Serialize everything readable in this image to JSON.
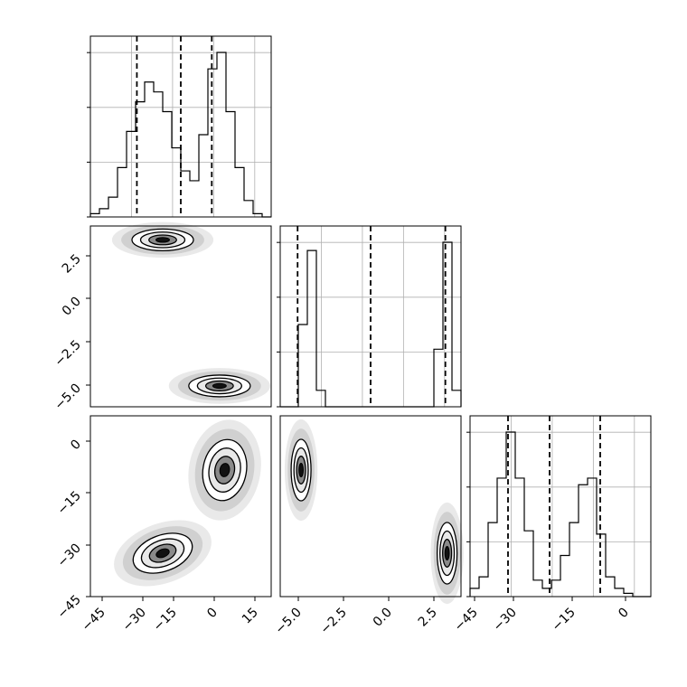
{
  "chart_data": [
    {
      "type": "histogram",
      "panel": "marginal-x",
      "x_range": [
        -50,
        20
      ],
      "bin_edges": [
        -50,
        -46.5,
        -43,
        -39.5,
        -36,
        -32.5,
        -29,
        -25.5,
        -22,
        -18.5,
        -15,
        -11.5,
        -8,
        -4.5,
        -1,
        2.5,
        6,
        9.5,
        13,
        16.5,
        20
      ],
      "counts": [
        0.02,
        0.05,
        0.12,
        0.3,
        0.52,
        0.7,
        0.82,
        0.76,
        0.64,
        0.42,
        0.28,
        0.22,
        0.5,
        0.9,
        1.0,
        0.64,
        0.3,
        0.1,
        0.02,
        0.0
      ],
      "quantiles": [
        -32,
        -15,
        -3
      ],
      "grid": true
    },
    {
      "type": "scatter-density",
      "panel": "y1-vs-x",
      "x_range": [
        -50,
        20
      ],
      "y_range": [
        -6.2,
        4.2
      ],
      "yticks": [
        "2.5",
        "0.0",
        "−2.5",
        "−5.0"
      ],
      "clusters": [
        {
          "x": -22,
          "y": 3.4
        },
        {
          "x": 0,
          "y": -5.0
        }
      ]
    },
    {
      "type": "histogram",
      "panel": "marginal-y1",
      "x_range": [
        -6.2,
        4.2
      ],
      "bin_edges": [
        -6.2,
        -5.68,
        -5.16,
        -4.64,
        -4.12,
        -3.6,
        -3.08,
        -2.56,
        -2.04,
        -1.52,
        -1.0,
        -0.48,
        0.04,
        0.56,
        1.08,
        1.6,
        2.12,
        2.64,
        3.16,
        3.68,
        4.2
      ],
      "counts": [
        0.0,
        0.0,
        0.5,
        0.95,
        0.1,
        0,
        0,
        0,
        0,
        0,
        0,
        0,
        0,
        0,
        0,
        0,
        0.0,
        0.35,
        1.0,
        0.1
      ],
      "quantiles": [
        -5.2,
        -1.0,
        3.3
      ],
      "grid": true
    },
    {
      "type": "scatter-density",
      "panel": "y2-vs-x",
      "x_range": [
        -50,
        20
      ],
      "y_range": [
        -45,
        5
      ],
      "yticks": [
        "0",
        "−15",
        "−30",
        "−45"
      ],
      "xticks": [
        "−45",
        "−30",
        "−15",
        "0",
        "15"
      ],
      "clusters": [
        {
          "x": -22,
          "y": -33
        },
        {
          "x": 2,
          "y": -10
        }
      ]
    },
    {
      "type": "scatter-density",
      "panel": "y2-vs-y1",
      "x_range": [
        -6.2,
        4.2
      ],
      "y_range": [
        -45,
        5
      ],
      "xticks": [
        "−5.0",
        "−2.5",
        "0.0",
        "2.5"
      ],
      "clusters": [
        {
          "x": -5.0,
          "y": -10
        },
        {
          "x": 3.4,
          "y": -33
        }
      ]
    },
    {
      "type": "histogram",
      "panel": "marginal-y2",
      "x_range": [
        -45,
        5
      ],
      "bin_edges": [
        -45,
        -42.5,
        -40,
        -37.5,
        -35,
        -32.5,
        -30,
        -27.5,
        -25,
        -22.5,
        -20,
        -17.5,
        -15,
        -12.5,
        -10,
        -7.5,
        -5,
        -2.5,
        0,
        2.5,
        5
      ],
      "counts": [
        0.05,
        0.12,
        0.45,
        0.72,
        1.0,
        0.72,
        0.4,
        0.1,
        0.05,
        0.1,
        0.25,
        0.45,
        0.68,
        0.72,
        0.38,
        0.12,
        0.05,
        0.02,
        0.0,
        0.0
      ],
      "quantiles": [
        -34.5,
        -23,
        -9
      ],
      "xticks": [
        "−45",
        "−30",
        "−15",
        "0"
      ],
      "grid": true
    }
  ]
}
